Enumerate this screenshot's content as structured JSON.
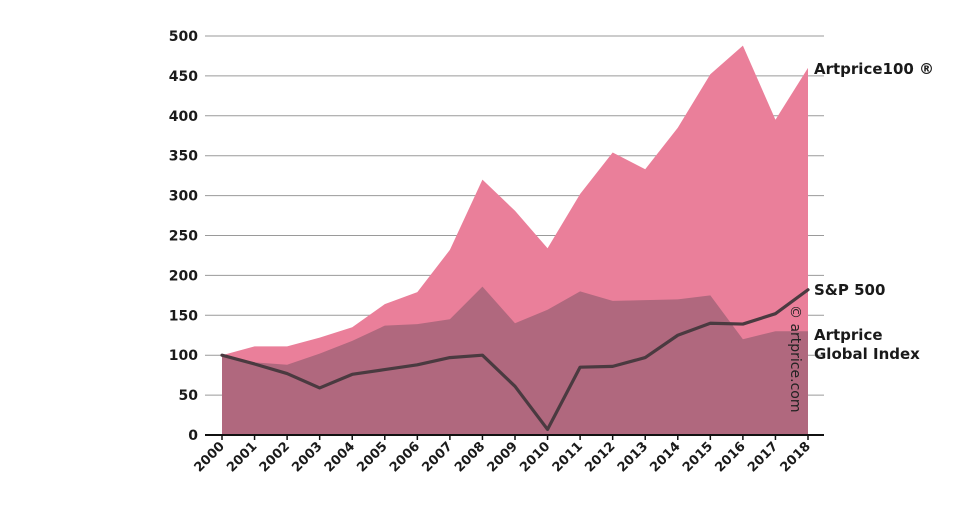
{
  "chart_data": {
    "type": "area",
    "x": [
      "2000",
      "2001",
      "2002",
      "2003",
      "2004",
      "2005",
      "2006",
      "2007",
      "2008",
      "2009",
      "2010",
      "2011",
      "2012",
      "2013",
      "2014",
      "2015",
      "2016",
      "2017",
      "2018"
    ],
    "ylim": [
      0,
      500
    ],
    "yticks": [
      0,
      50,
      100,
      150,
      200,
      250,
      300,
      350,
      400,
      450,
      500
    ],
    "grid": true,
    "series": [
      {
        "name": "Artprice100 ®",
        "kind": "area",
        "color": "#ea7f9a",
        "values": [
          100,
          111,
          111,
          122,
          135,
          164,
          179,
          232,
          320,
          281,
          234,
          302,
          354,
          333,
          385,
          452,
          488,
          395,
          460
        ]
      },
      {
        "name": "Artprice Global Index",
        "kind": "area",
        "color": "#b0687e",
        "values": [
          100,
          91,
          88,
          102,
          118,
          137,
          139,
          145,
          186,
          140,
          157,
          180,
          168,
          169,
          170,
          175,
          120,
          130,
          130
        ]
      },
      {
        "name": "S&P 500",
        "kind": "line",
        "color": "#4a3a40",
        "values": [
          100,
          89,
          77,
          59,
          76,
          82,
          88,
          97,
          100,
          61,
          7,
          85,
          86,
          97,
          125,
          140,
          139,
          152,
          182
        ]
      }
    ],
    "labels": {
      "artprice100": "Artprice100 ®",
      "sp500": "S&P 500",
      "global_line1": "Artprice",
      "global_line2": "Global Index"
    },
    "watermark": "© artprice.com"
  }
}
